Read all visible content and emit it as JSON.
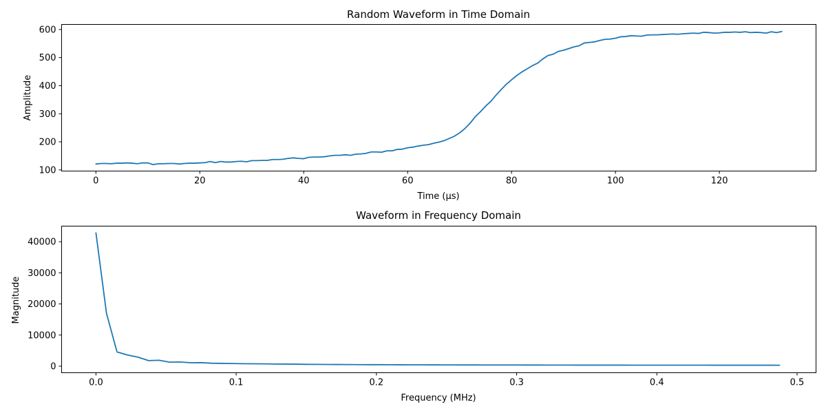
{
  "colors": {
    "line": "#1f77b4",
    "axis": "#000000",
    "background": "#ffffff"
  },
  "chart_data": [
    {
      "type": "line",
      "title": "Random Waveform in Time Domain",
      "xlabel": "Time (μs)",
      "ylabel": "Amplitude",
      "xlim": [
        -6.6,
        138.6
      ],
      "ylim": [
        96,
        618
      ],
      "xticks": [
        0,
        20,
        40,
        60,
        80,
        100,
        120
      ],
      "yticks": [
        100,
        200,
        300,
        400,
        500,
        600
      ],
      "grid": false,
      "series": [
        {
          "x": [
            0,
            1,
            2,
            3,
            4,
            5,
            6,
            7,
            8,
            9,
            10,
            11,
            12,
            13,
            14,
            15,
            16,
            17,
            18,
            19,
            20,
            21,
            22,
            23,
            24,
            25,
            26,
            27,
            28,
            29,
            30,
            31,
            32,
            33,
            34,
            35,
            36,
            37,
            38,
            39,
            40,
            41,
            42,
            43,
            44,
            45,
            46,
            47,
            48,
            49,
            50,
            51,
            52,
            53,
            54,
            55,
            56,
            57,
            58,
            59,
            60,
            61,
            62,
            63,
            64,
            65,
            66,
            67,
            68,
            69,
            70,
            71,
            72,
            73,
            74,
            75,
            76,
            77,
            78,
            79,
            80,
            81,
            82,
            83,
            84,
            85,
            86,
            87,
            88,
            89,
            90,
            91,
            92,
            93,
            94,
            95,
            96,
            97,
            98,
            99,
            100,
            101,
            102,
            103,
            104,
            105,
            106,
            107,
            108,
            109,
            110,
            111,
            112,
            113,
            114,
            115,
            116,
            117,
            118,
            119,
            120,
            121,
            122,
            123,
            124,
            125,
            126,
            127,
            128,
            129,
            130,
            131,
            132
          ],
          "y": [
            121,
            123,
            123,
            122,
            124,
            124,
            125,
            124,
            122,
            125,
            125,
            119,
            122,
            122,
            123,
            123,
            121,
            123,
            124,
            124,
            125,
            126,
            130,
            126,
            130,
            128,
            128,
            130,
            131,
            129,
            133,
            133,
            134,
            134,
            137,
            137,
            138,
            141,
            143,
            141,
            140,
            145,
            146,
            146,
            147,
            150,
            152,
            152,
            154,
            152,
            156,
            157,
            159,
            164,
            164,
            163,
            168,
            168,
            173,
            174,
            179,
            181,
            185,
            188,
            190,
            195,
            199,
            204,
            212,
            220,
            232,
            247,
            266,
            289,
            307,
            327,
            344,
            366,
            386,
            405,
            421,
            436,
            449,
            460,
            471,
            480,
            495,
            507,
            512,
            522,
            526,
            532,
            538,
            542,
            552,
            554,
            556,
            561,
            565,
            566,
            569,
            574,
            575,
            578,
            577,
            576,
            580,
            581,
            581,
            582,
            583,
            584,
            583,
            585,
            586,
            587,
            586,
            590,
            589,
            587,
            588,
            590,
            590,
            591,
            590,
            592,
            589,
            590,
            589,
            587,
            592,
            589,
            593
          ]
        }
      ]
    },
    {
      "type": "line",
      "title": "Waveform in Frequency Domain",
      "xlabel": "Frequency (MHz)",
      "ylabel": "Magnitude",
      "xlim": [
        -0.0245,
        0.5135
      ],
      "ylim": [
        -2100,
        45000
      ],
      "xticks": [
        0.0,
        0.1,
        0.2,
        0.3,
        0.4,
        0.5
      ],
      "yticks": [
        0,
        10000,
        20000,
        30000,
        40000
      ],
      "grid": false,
      "series": [
        {
          "x": [
            0.0,
            0.0075,
            0.015,
            0.0225,
            0.03,
            0.0375,
            0.045,
            0.0525,
            0.06,
            0.0675,
            0.075,
            0.0825,
            0.09,
            0.0975,
            0.105,
            0.1125,
            0.12,
            0.1275,
            0.135,
            0.1425,
            0.15,
            0.1575,
            0.165,
            0.1725,
            0.18,
            0.1875,
            0.195,
            0.2025,
            0.21,
            0.2175,
            0.225,
            0.2325,
            0.24,
            0.2475,
            0.255,
            0.2625,
            0.27,
            0.2775,
            0.285,
            0.2925,
            0.3,
            0.3075,
            0.315,
            0.3225,
            0.33,
            0.3375,
            0.345,
            0.3525,
            0.36,
            0.3675,
            0.375,
            0.3825,
            0.39,
            0.3975,
            0.405,
            0.4125,
            0.42,
            0.4275,
            0.435,
            0.4425,
            0.45,
            0.4575,
            0.465,
            0.4725,
            0.48,
            0.4875
          ],
          "y": [
            42800,
            17000,
            4600,
            3600,
            2900,
            1800,
            1900,
            1300,
            1350,
            1100,
            1150,
            950,
            900,
            850,
            800,
            780,
            750,
            700,
            680,
            650,
            600,
            580,
            560,
            540,
            520,
            500,
            490,
            480,
            470,
            460,
            450,
            440,
            430,
            420,
            410,
            405,
            400,
            395,
            390,
            385,
            380,
            375,
            370,
            365,
            360,
            355,
            350,
            348,
            346,
            344,
            342,
            340,
            338,
            336,
            334,
            332,
            330,
            328,
            326,
            324,
            322,
            320,
            318,
            316,
            314,
            312
          ]
        }
      ]
    }
  ]
}
